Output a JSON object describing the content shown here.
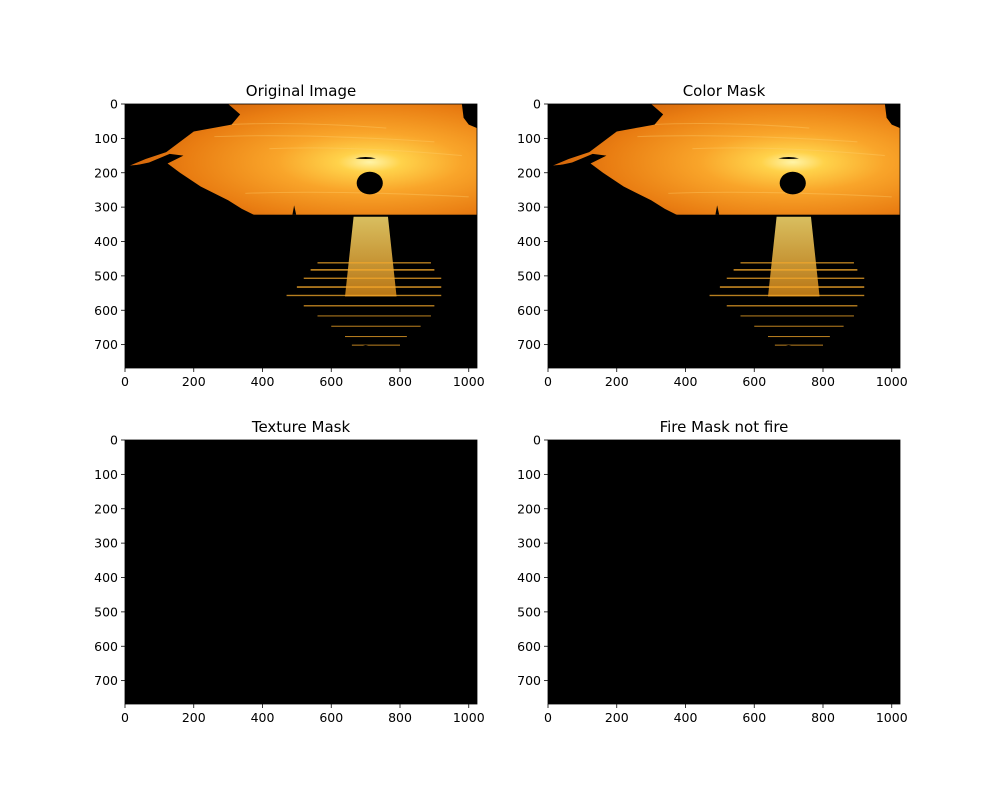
{
  "chart_data": [
    {
      "type": "image",
      "title": "Original Image",
      "xlim": [
        0,
        1024
      ],
      "ylim": [
        768,
        0
      ],
      "xticks": [
        0,
        200,
        400,
        600,
        800,
        1000
      ],
      "yticks": [
        0,
        100,
        200,
        300,
        400,
        500,
        600,
        700
      ],
      "content": "sunset-over-water"
    },
    {
      "type": "image",
      "title": "Color Mask",
      "xlim": [
        0,
        1024
      ],
      "ylim": [
        768,
        0
      ],
      "xticks": [
        0,
        200,
        400,
        600,
        800,
        1000
      ],
      "yticks": [
        0,
        100,
        200,
        300,
        400,
        500,
        600,
        700
      ],
      "content": "sunset-over-water"
    },
    {
      "type": "image",
      "title": "Texture Mask",
      "xlim": [
        0,
        1024
      ],
      "ylim": [
        768,
        0
      ],
      "xticks": [
        0,
        200,
        400,
        600,
        800,
        1000
      ],
      "yticks": [
        0,
        100,
        200,
        300,
        400,
        500,
        600,
        700
      ],
      "content": "all-black"
    },
    {
      "type": "image",
      "title": "Fire Mask not fire",
      "xlim": [
        0,
        1024
      ],
      "ylim": [
        768,
        0
      ],
      "xticks": [
        0,
        200,
        400,
        600,
        800,
        1000
      ],
      "yticks": [
        0,
        100,
        200,
        300,
        400,
        500,
        600,
        700
      ],
      "content": "all-black"
    }
  ],
  "colors": {
    "sky_top": "#f08a10",
    "sky_glow": "#ffd860",
    "sun_core": "#fff2a0",
    "silhouette": "#000000",
    "reflection": "#ffc040"
  }
}
